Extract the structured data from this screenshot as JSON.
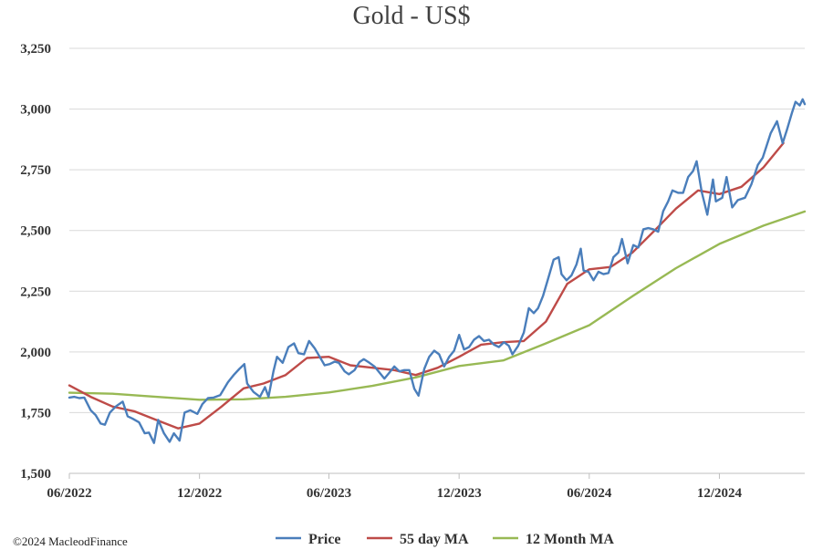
{
  "chart_data": {
    "type": "line",
    "title": "Gold - US$",
    "xlabel": "",
    "ylabel": "",
    "ylim": [
      1500,
      3250
    ],
    "yticks": [
      1500,
      1750,
      2000,
      2250,
      2500,
      2750,
      3000,
      3250
    ],
    "ytick_labels": [
      "1,500",
      "1,750",
      "2,000",
      "2,250",
      "2,500",
      "2,750",
      "3,000",
      "3,250"
    ],
    "xlim": [
      "2022-06-01",
      "2025-03-31"
    ],
    "xticks": [
      "2022-06-01",
      "2022-12-01",
      "2023-06-01",
      "2023-12-01",
      "2024-06-01",
      "2024-12-01"
    ],
    "xtick_labels": [
      "06/2022",
      "12/2022",
      "06/2023",
      "12/2023",
      "06/2024",
      "12/2024"
    ],
    "grid": "horizontal",
    "legend_position": "bottom",
    "colors": {
      "price": "#4a7ebb",
      "ma55": "#be4b48",
      "ma12m": "#98b954",
      "grid": "#d9d9d9",
      "axis": "#bfbfbf"
    },
    "series": [
      {
        "name": "Price",
        "color": "#4a7ebb",
        "points": [
          [
            "2022-06-01",
            1812
          ],
          [
            "2022-06-08",
            1815
          ],
          [
            "2022-06-15",
            1810
          ],
          [
            "2022-06-22",
            1812
          ],
          [
            "2022-07-01",
            1760
          ],
          [
            "2022-07-08",
            1740
          ],
          [
            "2022-07-15",
            1705
          ],
          [
            "2022-07-21",
            1700
          ],
          [
            "2022-07-28",
            1750
          ],
          [
            "2022-08-05",
            1775
          ],
          [
            "2022-08-15",
            1795
          ],
          [
            "2022-08-22",
            1735
          ],
          [
            "2022-08-29",
            1725
          ],
          [
            "2022-09-07",
            1710
          ],
          [
            "2022-09-15",
            1665
          ],
          [
            "2022-09-21",
            1668
          ],
          [
            "2022-09-28",
            1625
          ],
          [
            "2022-10-04",
            1720
          ],
          [
            "2022-10-12",
            1665
          ],
          [
            "2022-10-20",
            1630
          ],
          [
            "2022-10-26",
            1665
          ],
          [
            "2022-11-03",
            1635
          ],
          [
            "2022-11-10",
            1750
          ],
          [
            "2022-11-18",
            1760
          ],
          [
            "2022-11-28",
            1745
          ],
          [
            "2022-12-05",
            1785
          ],
          [
            "2022-12-13",
            1810
          ],
          [
            "2022-12-21",
            1812
          ],
          [
            "2022-12-30",
            1822
          ],
          [
            "2023-01-10",
            1875
          ],
          [
            "2023-01-18",
            1905
          ],
          [
            "2023-01-26",
            1930
          ],
          [
            "2023-02-02",
            1950
          ],
          [
            "2023-02-06",
            1870
          ],
          [
            "2023-02-15",
            1835
          ],
          [
            "2023-02-24",
            1815
          ],
          [
            "2023-03-03",
            1855
          ],
          [
            "2023-03-08",
            1815
          ],
          [
            "2023-03-15",
            1920
          ],
          [
            "2023-03-20",
            1980
          ],
          [
            "2023-03-28",
            1955
          ],
          [
            "2023-04-05",
            2020
          ],
          [
            "2023-04-13",
            2035
          ],
          [
            "2023-04-19",
            1995
          ],
          [
            "2023-04-27",
            1990
          ],
          [
            "2023-05-04",
            2045
          ],
          [
            "2023-05-12",
            2015
          ],
          [
            "2023-05-19",
            1980
          ],
          [
            "2023-05-26",
            1945
          ],
          [
            "2023-06-02",
            1950
          ],
          [
            "2023-06-09",
            1960
          ],
          [
            "2023-06-15",
            1955
          ],
          [
            "2023-06-23",
            1920
          ],
          [
            "2023-06-29",
            1908
          ],
          [
            "2023-07-07",
            1925
          ],
          [
            "2023-07-14",
            1958
          ],
          [
            "2023-07-20",
            1970
          ],
          [
            "2023-07-28",
            1955
          ],
          [
            "2023-08-04",
            1940
          ],
          [
            "2023-08-11",
            1915
          ],
          [
            "2023-08-18",
            1890
          ],
          [
            "2023-08-25",
            1915
          ],
          [
            "2023-09-01",
            1940
          ],
          [
            "2023-09-08",
            1920
          ],
          [
            "2023-09-15",
            1925
          ],
          [
            "2023-09-22",
            1925
          ],
          [
            "2023-09-29",
            1848
          ],
          [
            "2023-10-05",
            1820
          ],
          [
            "2023-10-13",
            1930
          ],
          [
            "2023-10-20",
            1980
          ],
          [
            "2023-10-27",
            2005
          ],
          [
            "2023-11-03",
            1990
          ],
          [
            "2023-11-10",
            1940
          ],
          [
            "2023-11-17",
            1980
          ],
          [
            "2023-11-24",
            2005
          ],
          [
            "2023-12-01",
            2070
          ],
          [
            "2023-12-08",
            2010
          ],
          [
            "2023-12-15",
            2020
          ],
          [
            "2023-12-22",
            2050
          ],
          [
            "2023-12-29",
            2065
          ],
          [
            "2024-01-05",
            2045
          ],
          [
            "2024-01-12",
            2050
          ],
          [
            "2024-01-19",
            2030
          ],
          [
            "2024-01-26",
            2020
          ],
          [
            "2024-02-02",
            2040
          ],
          [
            "2024-02-09",
            2025
          ],
          [
            "2024-02-14",
            1990
          ],
          [
            "2024-02-22",
            2025
          ],
          [
            "2024-03-01",
            2080
          ],
          [
            "2024-03-08",
            2180
          ],
          [
            "2024-03-15",
            2160
          ],
          [
            "2024-03-21",
            2180
          ],
          [
            "2024-03-28",
            2230
          ],
          [
            "2024-04-04",
            2300
          ],
          [
            "2024-04-12",
            2380
          ],
          [
            "2024-04-19",
            2390
          ],
          [
            "2024-04-23",
            2320
          ],
          [
            "2024-04-30",
            2295
          ],
          [
            "2024-05-07",
            2315
          ],
          [
            "2024-05-14",
            2360
          ],
          [
            "2024-05-20",
            2425
          ],
          [
            "2024-05-24",
            2335
          ],
          [
            "2024-05-31",
            2330
          ],
          [
            "2024-06-07",
            2295
          ],
          [
            "2024-06-14",
            2330
          ],
          [
            "2024-06-21",
            2320
          ],
          [
            "2024-06-28",
            2325
          ],
          [
            "2024-07-05",
            2390
          ],
          [
            "2024-07-12",
            2410
          ],
          [
            "2024-07-17",
            2465
          ],
          [
            "2024-07-25",
            2365
          ],
          [
            "2024-08-02",
            2440
          ],
          [
            "2024-08-09",
            2430
          ],
          [
            "2024-08-16",
            2505
          ],
          [
            "2024-08-23",
            2510
          ],
          [
            "2024-08-30",
            2505
          ],
          [
            "2024-09-06",
            2495
          ],
          [
            "2024-09-13",
            2580
          ],
          [
            "2024-09-20",
            2620
          ],
          [
            "2024-09-26",
            2665
          ],
          [
            "2024-10-04",
            2655
          ],
          [
            "2024-10-11",
            2655
          ],
          [
            "2024-10-18",
            2720
          ],
          [
            "2024-10-25",
            2745
          ],
          [
            "2024-10-30",
            2785
          ],
          [
            "2024-11-06",
            2660
          ],
          [
            "2024-11-14",
            2565
          ],
          [
            "2024-11-22",
            2710
          ],
          [
            "2024-11-26",
            2620
          ],
          [
            "2024-12-05",
            2635
          ],
          [
            "2024-12-11",
            2720
          ],
          [
            "2024-12-19",
            2595
          ],
          [
            "2024-12-27",
            2625
          ],
          [
            "2025-01-06",
            2635
          ],
          [
            "2025-01-15",
            2690
          ],
          [
            "2025-01-24",
            2770
          ],
          [
            "2025-01-31",
            2800
          ],
          [
            "2025-02-11",
            2900
          ],
          [
            "2025-02-20",
            2950
          ],
          [
            "2025-02-28",
            2860
          ],
          [
            "2025-03-06",
            2915
          ],
          [
            "2025-03-13",
            2985
          ],
          [
            "2025-03-18",
            3030
          ],
          [
            "2025-03-24",
            3015
          ],
          [
            "2025-03-28",
            3040
          ],
          [
            "2025-03-31",
            3020
          ]
        ]
      },
      {
        "name": "55 day MA",
        "color": "#be4b48",
        "points": [
          [
            "2022-06-01",
            1862
          ],
          [
            "2022-07-01",
            1815
          ],
          [
            "2022-08-01",
            1775
          ],
          [
            "2022-09-01",
            1755
          ],
          [
            "2022-10-01",
            1720
          ],
          [
            "2022-11-01",
            1685
          ],
          [
            "2022-12-01",
            1705
          ],
          [
            "2023-01-01",
            1775
          ],
          [
            "2023-02-01",
            1850
          ],
          [
            "2023-03-01",
            1870
          ],
          [
            "2023-04-01",
            1905
          ],
          [
            "2023-05-01",
            1975
          ],
          [
            "2023-06-01",
            1980
          ],
          [
            "2023-07-01",
            1945
          ],
          [
            "2023-08-01",
            1935
          ],
          [
            "2023-09-01",
            1925
          ],
          [
            "2023-10-01",
            1905
          ],
          [
            "2023-11-01",
            1935
          ],
          [
            "2023-12-01",
            1980
          ],
          [
            "2024-01-01",
            2030
          ],
          [
            "2024-02-01",
            2040
          ],
          [
            "2024-03-01",
            2045
          ],
          [
            "2024-04-01",
            2125
          ],
          [
            "2024-05-01",
            2280
          ],
          [
            "2024-06-01",
            2340
          ],
          [
            "2024-07-01",
            2350
          ],
          [
            "2024-08-01",
            2410
          ],
          [
            "2024-09-01",
            2500
          ],
          [
            "2024-10-01",
            2590
          ],
          [
            "2024-11-01",
            2665
          ],
          [
            "2024-12-01",
            2650
          ],
          [
            "2025-01-01",
            2680
          ],
          [
            "2025-02-01",
            2760
          ],
          [
            "2025-03-01",
            2860
          ]
        ]
      },
      {
        "name": "12 Month MA",
        "color": "#98b954",
        "points": [
          [
            "2022-06-01",
            1832
          ],
          [
            "2022-08-01",
            1828
          ],
          [
            "2022-10-01",
            1815
          ],
          [
            "2022-12-01",
            1803
          ],
          [
            "2023-02-01",
            1805
          ],
          [
            "2023-04-01",
            1815
          ],
          [
            "2023-06-01",
            1833
          ],
          [
            "2023-08-01",
            1860
          ],
          [
            "2023-10-01",
            1895
          ],
          [
            "2023-12-01",
            1942
          ],
          [
            "2024-02-01",
            1965
          ],
          [
            "2024-04-01",
            2035
          ],
          [
            "2024-06-01",
            2110
          ],
          [
            "2024-08-01",
            2230
          ],
          [
            "2024-10-01",
            2345
          ],
          [
            "2024-12-01",
            2445
          ],
          [
            "2025-02-01",
            2520
          ],
          [
            "2025-03-31",
            2578
          ]
        ]
      }
    ],
    "copyright": "©2024 MacleodFinance"
  }
}
